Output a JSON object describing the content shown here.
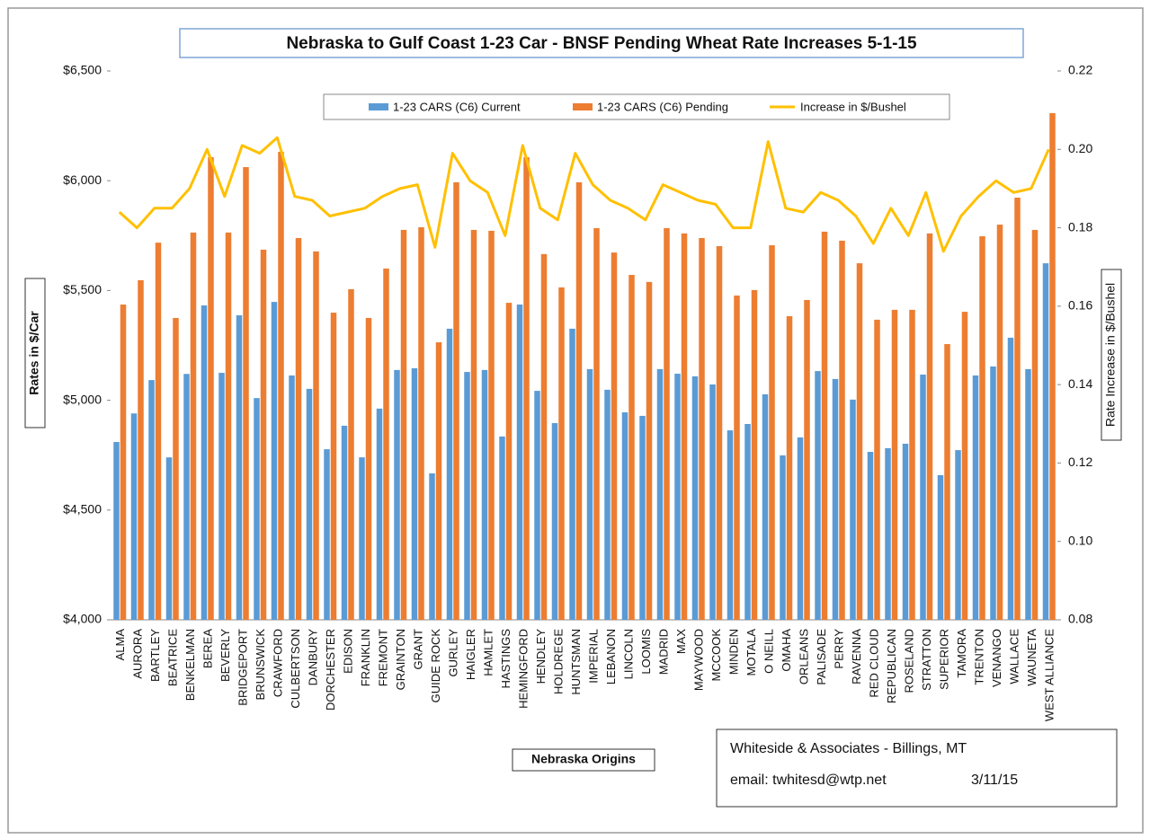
{
  "chart_data": {
    "type": "bar_line",
    "title": "Nebraska to Gulf Coast 1-23 Car - BNSF Pending Wheat Rate Increases 5-1-15",
    "ylabel": "Rates in $/Car",
    "y2label": "Rate Increase in $/Bushel",
    "xlabel": "Nebraska Origins",
    "note": [
      "Whiteside & Associates - Billings, MT",
      "email: twhitesd@wtp.net",
      "3/11/15"
    ],
    "categories": [
      "ALMA",
      "AURORA",
      "BARTLEY",
      "BEATRICE",
      "BENKELMAN",
      "BEREA",
      "BEVERLY",
      "BRIDGEPORT",
      "BRUNSWICK",
      "CRAWFORD",
      "CULBERTSON",
      "DANBURY",
      "DORCHESTER",
      "EDISON",
      "FRANKLIN",
      "FREMONT",
      "GRAINTON",
      "GRANT",
      "GUIDE ROCK",
      "GURLEY",
      "HAIGLER",
      "HAMLET",
      "HASTINGS",
      "HEMINGFORD",
      "HENDLEY",
      "HOLDREGE",
      "HUNTSMAN",
      "IMPERIAL",
      "LEBANON",
      "LINCOLN",
      "LOOMIS",
      "MADRID",
      "MAX",
      "MAYWOOD",
      "MCCOOK",
      "MINDEN",
      "MOTALA",
      "O NEILL",
      "OMAHA",
      "ORLEANS",
      "PALISADE",
      "PERRY",
      "RAVENNA",
      "RED CLOUD",
      "REPUBLICAN",
      "ROSELAND",
      "STRATTON",
      "SUPERIOR",
      "TAMORA",
      "TRENTON",
      "VENANGO",
      "WALLACE",
      "WAUNETA",
      "WEST ALLIANCE"
    ],
    "series": [
      {
        "name": "1-23 CARS (C6) Current",
        "type": "bar",
        "color": "#5b9bd5",
        "values": [
          4810,
          4940,
          5092,
          4740,
          5120,
          5432,
          5125,
          5387,
          5010,
          5448,
          5113,
          5052,
          4777,
          4884,
          4740,
          4962,
          5138,
          5146,
          4667,
          5326,
          5129,
          5138,
          4835,
          5436,
          5043,
          4896,
          5326,
          5142,
          5048,
          4945,
          4929,
          5142,
          5121,
          5109,
          5072,
          4863,
          4892,
          5027,
          4749,
          4831,
          5133,
          5097,
          5003,
          4765,
          4782,
          4802,
          5117,
          4659,
          4773,
          5113,
          5154,
          5285,
          5142,
          5624
        ]
      },
      {
        "name": "1-23 CARS (C6) Pending",
        "type": "bar",
        "color": "#ed7d31",
        "values": [
          5436,
          5547,
          5718,
          5375,
          5764,
          6107,
          5764,
          6062,
          5686,
          6132,
          5739,
          5678,
          5399,
          5506,
          5375,
          5600,
          5776,
          5788,
          5264,
          5993,
          5776,
          5772,
          5444,
          6107,
          5666,
          5514,
          5993,
          5784,
          5673,
          5571,
          5539,
          5784,
          5760,
          5739,
          5702,
          5477,
          5502,
          5706,
          5383,
          5457,
          5768,
          5727,
          5624,
          5367,
          5412,
          5412,
          5760,
          5256,
          5403,
          5747,
          5800,
          5923,
          5776,
          6308
        ]
      },
      {
        "name": "Increase in $/Bushel",
        "type": "line",
        "axis": "y2",
        "color": "#ffc000",
        "values": [
          0.184,
          0.18,
          0.185,
          0.185,
          0.19,
          0.2,
          0.188,
          0.201,
          0.199,
          0.203,
          0.188,
          0.187,
          0.183,
          0.184,
          0.185,
          0.188,
          0.19,
          0.191,
          0.175,
          0.199,
          0.192,
          0.189,
          0.178,
          0.201,
          0.185,
          0.182,
          0.199,
          0.191,
          0.187,
          0.185,
          0.182,
          0.191,
          0.189,
          0.187,
          0.186,
          0.18,
          0.18,
          0.202,
          0.185,
          0.184,
          0.189,
          0.187,
          0.183,
          0.176,
          0.185,
          0.178,
          0.189,
          0.174,
          0.183,
          0.188,
          0.192,
          0.189,
          0.19,
          0.2
        ]
      }
    ],
    "ylim": [
      4000,
      6500
    ],
    "yticks": [
      {
        "value": 4000,
        "label": "$4,000"
      },
      {
        "value": 4500,
        "label": "$4,500"
      },
      {
        "value": 5000,
        "label": "$5,000"
      },
      {
        "value": 5500,
        "label": "$5,500"
      },
      {
        "value": 6000,
        "label": "$6,000"
      },
      {
        "value": 6500,
        "label": "$6,500"
      }
    ],
    "y2lim": [
      0.08,
      0.22
    ],
    "y2ticks": [
      0.08,
      {
        "value": 0.1,
        "label": "0.10"
      },
      0.12,
      0.14,
      0.16,
      0.18,
      {
        "value": 0.2,
        "label": "0.20"
      },
      0.22
    ]
  }
}
